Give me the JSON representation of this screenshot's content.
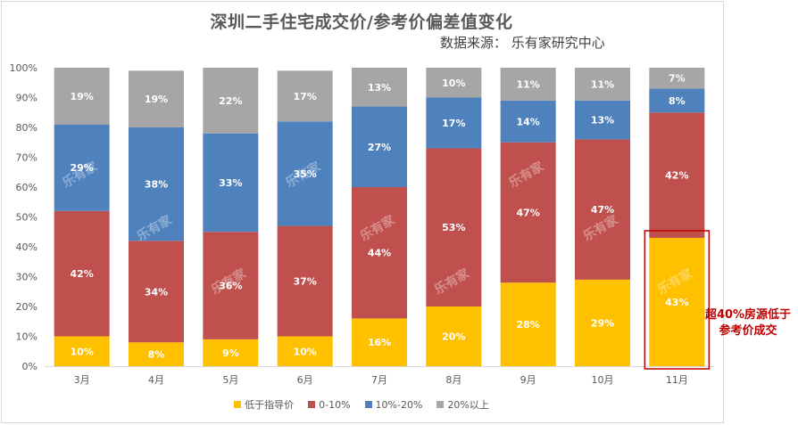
{
  "chart_data": {
    "type": "bar",
    "stacked": true,
    "title": "深圳二手住宅成交价/参考价偏差值变化",
    "source": "数据来源： 乐有家研究中心",
    "watermark": "乐有家",
    "categories": [
      "3月",
      "4月",
      "5月",
      "6月",
      "7月",
      "8月",
      "9月",
      "10月",
      "11月"
    ],
    "series": [
      {
        "name": "低于指导价",
        "color": "#ffc000",
        "values": [
          10,
          8,
          9,
          10,
          16,
          20,
          28,
          29,
          43
        ]
      },
      {
        "name": "0-10%",
        "color": "#c0504d",
        "values": [
          42,
          34,
          36,
          37,
          44,
          53,
          47,
          47,
          42
        ]
      },
      {
        "name": "10%-20%",
        "color": "#4f81bd",
        "values": [
          29,
          38,
          33,
          35,
          27,
          17,
          14,
          13,
          8
        ]
      },
      {
        "name": "20%以上",
        "color": "#a6a6a6",
        "values": [
          19,
          19,
          22,
          17,
          13,
          10,
          11,
          11,
          7
        ]
      }
    ],
    "y_ticks": [
      "0%",
      "10%",
      "20%",
      "30%",
      "40%",
      "50%",
      "60%",
      "70%",
      "80%",
      "90%",
      "100%"
    ],
    "ylim": [
      0,
      100
    ],
    "grid": false,
    "legend_position": "bottom",
    "annotation": {
      "text_line1": "超40%房源低于",
      "text_line2": "参考价成交",
      "highlight_category": "11月",
      "color": "#c00000"
    }
  }
}
